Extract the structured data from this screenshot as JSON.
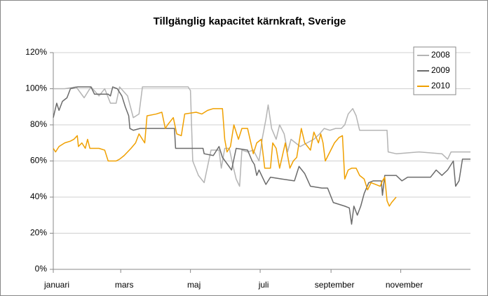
{
  "chart_data": {
    "type": "line",
    "title": "Tillgänglig kapacitet kärnkraft, Sverige",
    "xlim": [
      0,
      365
    ],
    "xticks": [
      {
        "value": 0,
        "label": "januari"
      },
      {
        "value": 59,
        "label": "mars"
      },
      {
        "value": 120,
        "label": "maj"
      },
      {
        "value": 181,
        "label": "juli"
      },
      {
        "value": 243,
        "label": "september"
      },
      {
        "value": 304,
        "label": "november"
      }
    ],
    "ylim": [
      0,
      120
    ],
    "yticks": [
      {
        "value": 0,
        "label": "0%"
      },
      {
        "value": 20,
        "label": "20%"
      },
      {
        "value": 40,
        "label": "40%"
      },
      {
        "value": 60,
        "label": "60%"
      },
      {
        "value": 80,
        "label": "80%"
      },
      {
        "value": 100,
        "label": "100%"
      },
      {
        "value": 120,
        "label": "120%"
      }
    ],
    "grid": true,
    "legend": "top-right",
    "series": [
      {
        "name": "2008",
        "color": "#b4b4b4",
        "x": [
          0,
          10,
          20,
          27,
          33,
          40,
          45,
          50,
          55,
          58,
          65,
          70,
          75,
          78,
          95,
          110,
          118,
          120,
          122,
          127,
          132,
          136,
          138,
          145,
          147,
          150,
          154,
          157,
          160,
          163,
          165,
          170,
          175,
          180,
          183,
          186,
          188,
          191,
          195,
          198,
          202,
          205,
          208,
          212,
          216,
          222,
          228,
          233,
          237,
          242,
          247,
          252,
          255,
          258,
          262,
          265,
          268,
          275,
          292,
          293,
          300,
          320,
          340,
          345,
          348,
          365
        ],
        "values": [
          100,
          100,
          101,
          95,
          101,
          96,
          100,
          92,
          92,
          101,
          96,
          84,
          86,
          101,
          101,
          101,
          101,
          99,
          60,
          52,
          48,
          60,
          66,
          66,
          56,
          67,
          67,
          58,
          50,
          46,
          66,
          65,
          66,
          60,
          73,
          83,
          91,
          78,
          72,
          80,
          75,
          65,
          72,
          70,
          68,
          70,
          72,
          75,
          78,
          77,
          78,
          78,
          80,
          86,
          89,
          85,
          77,
          77,
          77,
          65,
          64,
          65,
          64,
          61,
          65,
          65
        ]
      },
      {
        "name": "2009",
        "color": "#6b6b6b",
        "x": [
          0,
          3,
          5,
          8,
          12,
          15,
          21,
          33,
          36,
          48,
          50,
          52,
          56,
          60,
          63,
          66,
          67,
          70,
          76,
          106,
          107,
          131,
          132,
          140,
          145,
          148,
          156,
          160,
          170,
          174,
          176,
          178,
          180,
          186,
          190,
          200,
          211,
          215,
          220,
          225,
          235,
          240,
          245,
          255,
          259,
          261,
          263,
          266,
          269,
          272,
          276,
          280,
          287,
          288,
          290,
          300,
          305,
          310,
          330,
          335,
          340,
          345,
          350,
          352,
          355,
          358,
          365
        ],
        "values": [
          84,
          92,
          88,
          93,
          95,
          100,
          101,
          101,
          97,
          97,
          96,
          101,
          100,
          96,
          90,
          85,
          78,
          77,
          78,
          78,
          67,
          67,
          64,
          63,
          68,
          62,
          55,
          67,
          66,
          60,
          58,
          52,
          55,
          47,
          51,
          50,
          49,
          57,
          53,
          46,
          45,
          45,
          37,
          35,
          34,
          25,
          35,
          30,
          35,
          42,
          48,
          49,
          49,
          41,
          52,
          52,
          49,
          51,
          51,
          55,
          52,
          55,
          60,
          46,
          49,
          61,
          61
        ]
      },
      {
        "name": "2010",
        "color": "#f0a000",
        "x": [
          0,
          2,
          5,
          10,
          15,
          18,
          21,
          22,
          25,
          28,
          30,
          32,
          40,
          45,
          48,
          55,
          58,
          62,
          68,
          72,
          75,
          78,
          80,
          82,
          90,
          95,
          98,
          100,
          105,
          108,
          112,
          115,
          125,
          130,
          135,
          140,
          148,
          150,
          152,
          155,
          158,
          162,
          165,
          170,
          175,
          178,
          182,
          185,
          190,
          192,
          195,
          198,
          203,
          207,
          210,
          213,
          217,
          220,
          225,
          228,
          232,
          234,
          236,
          238,
          242,
          246,
          250,
          253,
          255,
          258,
          261,
          265,
          268,
          272,
          275,
          278,
          282,
          286,
          288,
          290,
          292,
          294,
          296,
          300
        ],
        "values": [
          67,
          65,
          68,
          70,
          71,
          72,
          74,
          68,
          70,
          67,
          72,
          67,
          67,
          66,
          60,
          60,
          61,
          63,
          67,
          70,
          75,
          72,
          70,
          85,
          86,
          87,
          78,
          80,
          84,
          75,
          74,
          86,
          87,
          86,
          88,
          89,
          89,
          72,
          65,
          68,
          80,
          72,
          78,
          78,
          64,
          70,
          72,
          56,
          56,
          70,
          67,
          56,
          70,
          56,
          60,
          62,
          78,
          70,
          66,
          76,
          70,
          75,
          70,
          60,
          65,
          70,
          73,
          74,
          50,
          55,
          56,
          56,
          52,
          50,
          44,
          48,
          47,
          46,
          49,
          51,
          38,
          35,
          37,
          40
        ]
      }
    ]
  }
}
